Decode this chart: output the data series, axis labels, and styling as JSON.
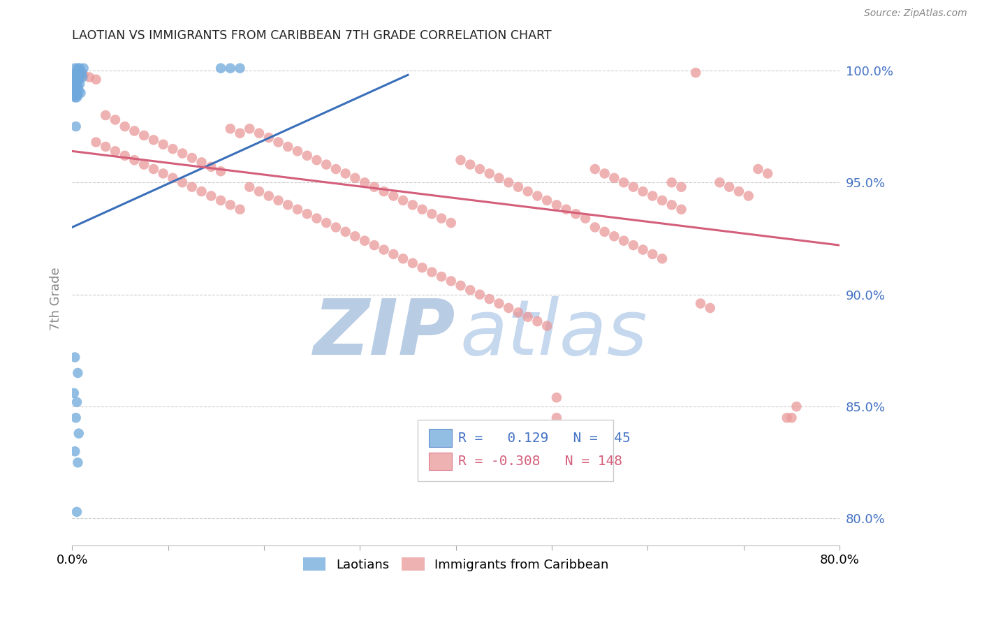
{
  "title": "LAOTIAN VS IMMIGRANTS FROM CARIBBEAN 7TH GRADE CORRELATION CHART",
  "source": "Source: ZipAtlas.com",
  "ylabel": "7th Grade",
  "x_min": 0.0,
  "x_max": 0.8,
  "y_min": 0.788,
  "y_max": 1.008,
  "y_ticks": [
    0.8,
    0.85,
    0.9,
    0.95,
    1.0
  ],
  "y_tick_labels": [
    "80.0%",
    "85.0%",
    "90.0%",
    "95.0%",
    "100.0%"
  ],
  "blue_R": 0.129,
  "blue_N": 45,
  "pink_R": -0.308,
  "pink_N": 148,
  "blue_color": "#6fa8dc",
  "pink_color": "#ea9999",
  "blue_line_color": "#3a6fba",
  "pink_line_color": "#d45f7a",
  "grid_color": "#cccccc",
  "watermark_color_zip": "#b8cce4",
  "watermark_color_atlas": "#c5d8ee",
  "blue_line": [
    0.0,
    0.93,
    0.35,
    0.998
  ],
  "pink_line": [
    0.0,
    0.964,
    0.8,
    0.922
  ],
  "blue_points": [
    [
      0.003,
      1.001
    ],
    [
      0.006,
      1.001
    ],
    [
      0.008,
      1.001
    ],
    [
      0.012,
      1.001
    ],
    [
      0.004,
      0.999
    ],
    [
      0.007,
      0.999
    ],
    [
      0.01,
      0.999
    ],
    [
      0.002,
      0.998
    ],
    [
      0.005,
      0.998
    ],
    [
      0.009,
      0.998
    ],
    [
      0.003,
      0.997
    ],
    [
      0.006,
      0.997
    ],
    [
      0.011,
      0.997
    ],
    [
      0.004,
      0.996
    ],
    [
      0.007,
      0.996
    ],
    [
      0.002,
      0.995
    ],
    [
      0.005,
      0.995
    ],
    [
      0.003,
      0.994
    ],
    [
      0.008,
      0.994
    ],
    [
      0.004,
      0.993
    ],
    [
      0.006,
      0.993
    ],
    [
      0.002,
      0.992
    ],
    [
      0.005,
      0.992
    ],
    [
      0.003,
      0.991
    ],
    [
      0.007,
      0.991
    ],
    [
      0.004,
      0.99
    ],
    [
      0.009,
      0.99
    ],
    [
      0.002,
      0.989
    ],
    [
      0.006,
      0.989
    ],
    [
      0.003,
      0.988
    ],
    [
      0.005,
      0.988
    ],
    [
      0.155,
      1.001
    ],
    [
      0.165,
      1.001
    ],
    [
      0.175,
      1.001
    ],
    [
      0.004,
      0.975
    ],
    [
      0.003,
      0.872
    ],
    [
      0.006,
      0.865
    ],
    [
      0.002,
      0.856
    ],
    [
      0.005,
      0.852
    ],
    [
      0.004,
      0.845
    ],
    [
      0.007,
      0.838
    ],
    [
      0.003,
      0.83
    ],
    [
      0.006,
      0.825
    ],
    [
      0.005,
      0.803
    ]
  ],
  "pink_points": [
    [
      0.008,
      0.999
    ],
    [
      0.65,
      0.999
    ],
    [
      0.012,
      0.998
    ],
    [
      0.018,
      0.997
    ],
    [
      0.025,
      0.996
    ],
    [
      0.035,
      0.98
    ],
    [
      0.045,
      0.978
    ],
    [
      0.055,
      0.975
    ],
    [
      0.065,
      0.973
    ],
    [
      0.075,
      0.971
    ],
    [
      0.085,
      0.969
    ],
    [
      0.095,
      0.967
    ],
    [
      0.105,
      0.965
    ],
    [
      0.115,
      0.963
    ],
    [
      0.125,
      0.961
    ],
    [
      0.135,
      0.959
    ],
    [
      0.145,
      0.957
    ],
    [
      0.155,
      0.955
    ],
    [
      0.025,
      0.968
    ],
    [
      0.035,
      0.966
    ],
    [
      0.045,
      0.964
    ],
    [
      0.055,
      0.962
    ],
    [
      0.065,
      0.96
    ],
    [
      0.075,
      0.958
    ],
    [
      0.085,
      0.956
    ],
    [
      0.095,
      0.954
    ],
    [
      0.105,
      0.952
    ],
    [
      0.115,
      0.95
    ],
    [
      0.125,
      0.948
    ],
    [
      0.135,
      0.946
    ],
    [
      0.145,
      0.944
    ],
    [
      0.155,
      0.942
    ],
    [
      0.165,
      0.94
    ],
    [
      0.175,
      0.938
    ],
    [
      0.185,
      0.974
    ],
    [
      0.195,
      0.972
    ],
    [
      0.205,
      0.97
    ],
    [
      0.215,
      0.968
    ],
    [
      0.225,
      0.966
    ],
    [
      0.235,
      0.964
    ],
    [
      0.245,
      0.962
    ],
    [
      0.255,
      0.96
    ],
    [
      0.265,
      0.958
    ],
    [
      0.275,
      0.956
    ],
    [
      0.285,
      0.954
    ],
    [
      0.295,
      0.952
    ],
    [
      0.305,
      0.95
    ],
    [
      0.315,
      0.948
    ],
    [
      0.325,
      0.946
    ],
    [
      0.335,
      0.944
    ],
    [
      0.345,
      0.942
    ],
    [
      0.355,
      0.94
    ],
    [
      0.365,
      0.938
    ],
    [
      0.375,
      0.936
    ],
    [
      0.385,
      0.934
    ],
    [
      0.395,
      0.932
    ],
    [
      0.405,
      0.96
    ],
    [
      0.415,
      0.958
    ],
    [
      0.425,
      0.956
    ],
    [
      0.435,
      0.954
    ],
    [
      0.445,
      0.952
    ],
    [
      0.455,
      0.95
    ],
    [
      0.465,
      0.948
    ],
    [
      0.475,
      0.946
    ],
    [
      0.485,
      0.944
    ],
    [
      0.495,
      0.942
    ],
    [
      0.505,
      0.94
    ],
    [
      0.515,
      0.938
    ],
    [
      0.525,
      0.936
    ],
    [
      0.535,
      0.934
    ],
    [
      0.165,
      0.974
    ],
    [
      0.175,
      0.972
    ],
    [
      0.185,
      0.948
    ],
    [
      0.195,
      0.946
    ],
    [
      0.205,
      0.944
    ],
    [
      0.215,
      0.942
    ],
    [
      0.225,
      0.94
    ],
    [
      0.235,
      0.938
    ],
    [
      0.245,
      0.936
    ],
    [
      0.255,
      0.934
    ],
    [
      0.265,
      0.932
    ],
    [
      0.275,
      0.93
    ],
    [
      0.285,
      0.928
    ],
    [
      0.295,
      0.926
    ],
    [
      0.305,
      0.924
    ],
    [
      0.315,
      0.922
    ],
    [
      0.325,
      0.92
    ],
    [
      0.335,
      0.918
    ],
    [
      0.345,
      0.916
    ],
    [
      0.355,
      0.914
    ],
    [
      0.365,
      0.912
    ],
    [
      0.375,
      0.91
    ],
    [
      0.385,
      0.908
    ],
    [
      0.395,
      0.906
    ],
    [
      0.405,
      0.904
    ],
    [
      0.415,
      0.902
    ],
    [
      0.425,
      0.9
    ],
    [
      0.435,
      0.898
    ],
    [
      0.445,
      0.896
    ],
    [
      0.455,
      0.894
    ],
    [
      0.465,
      0.892
    ],
    [
      0.475,
      0.89
    ],
    [
      0.485,
      0.888
    ],
    [
      0.495,
      0.886
    ],
    [
      0.545,
      0.956
    ],
    [
      0.555,
      0.954
    ],
    [
      0.565,
      0.952
    ],
    [
      0.575,
      0.95
    ],
    [
      0.585,
      0.948
    ],
    [
      0.595,
      0.946
    ],
    [
      0.605,
      0.944
    ],
    [
      0.615,
      0.942
    ],
    [
      0.625,
      0.94
    ],
    [
      0.635,
      0.938
    ],
    [
      0.545,
      0.93
    ],
    [
      0.555,
      0.928
    ],
    [
      0.565,
      0.926
    ],
    [
      0.575,
      0.924
    ],
    [
      0.585,
      0.922
    ],
    [
      0.595,
      0.92
    ],
    [
      0.605,
      0.918
    ],
    [
      0.615,
      0.916
    ],
    [
      0.625,
      0.95
    ],
    [
      0.635,
      0.948
    ],
    [
      0.655,
      0.896
    ],
    [
      0.665,
      0.894
    ],
    [
      0.675,
      0.95
    ],
    [
      0.685,
      0.948
    ],
    [
      0.695,
      0.946
    ],
    [
      0.705,
      0.944
    ],
    [
      0.715,
      0.956
    ],
    [
      0.725,
      0.954
    ],
    [
      0.505,
      0.854
    ],
    [
      0.755,
      0.85
    ],
    [
      0.745,
      0.845
    ],
    [
      0.505,
      0.845
    ],
    [
      0.75,
      0.845
    ]
  ]
}
